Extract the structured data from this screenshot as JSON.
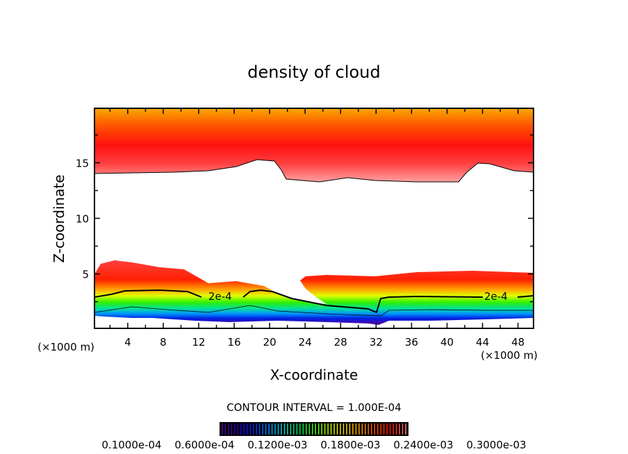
{
  "chart_data": {
    "type": "heatmap",
    "subtype": "filled-contour",
    "title": "density of cloud",
    "xlabel": "X-coordinate",
    "ylabel": "Z-coordinate",
    "x_unit_left": "(×1000 m)",
    "x_unit_right": "(×1000 m)",
    "xlim": [
      0.25,
      49.75
    ],
    "ylim": [
      0.1,
      19.9
    ],
    "xticks": [
      4,
      8,
      12,
      16,
      20,
      24,
      28,
      32,
      36,
      40,
      44,
      48
    ],
    "yticks": [
      5,
      10,
      15
    ],
    "contour_interval_text": "CONTOUR INTERVAL = 1.000E-04",
    "contour_labels": [
      "2e-4",
      "2e-4"
    ],
    "contour_level": 0.0002,
    "colorbar": {
      "colors": [
        "#5a009a",
        "#2a00c0",
        "#0020ff",
        "#0090ff",
        "#00e0e0",
        "#00e060",
        "#40ff00",
        "#c0ff00",
        "#ffe000",
        "#ffa000",
        "#ff5000",
        "#ff1000",
        "#ff8080"
      ],
      "labels": [
        "0.1000e-04",
        "0.6000e-04",
        "0.1200e-03",
        "0.1800e-03",
        "0.2400e-03",
        "0.3000e-03"
      ]
    }
  }
}
